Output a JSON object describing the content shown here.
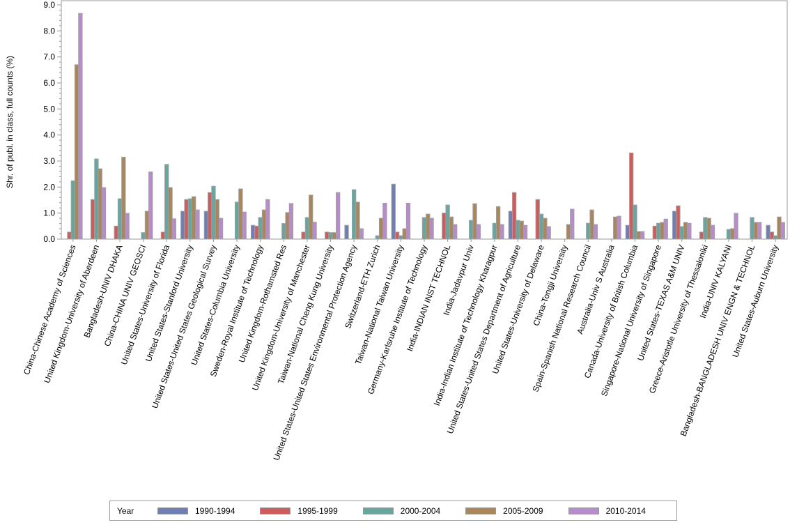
{
  "chart_data": {
    "type": "bar",
    "title": "",
    "xlabel": "",
    "ylabel": "Shr. of publ. in class, full counts (%)",
    "ylim": [
      0,
      9
    ],
    "yticks": [
      "0.0",
      "1.0",
      "2.0",
      "3.0",
      "4.0",
      "5.0",
      "6.0",
      "7.0",
      "8.0",
      "9.0"
    ],
    "legend_title": "Year",
    "legend_placement": "bottom",
    "categories": [
      "China-Chinese Academy of Sciences",
      "United Kingdom-University of Aberdeen",
      "Bangladesh-UNIV DHAKA",
      "China-CHINA UNIV GEOSCI",
      "United States-University of Florida",
      "United States-Stanford University",
      "United States-United States Geological Survey",
      "United States-Columbia University",
      "Sweden-Royal Institute of Technology",
      "United Kingdom-Rothamsted Res",
      "United Kingdom-University of Manchester",
      "Taiwan-National Cheng Kung University",
      "United States-United States Environmental Protection Agency",
      "Switzerland-ETH Zurich",
      "Taiwan-National Taiwan University",
      "Germany-Karlsruhe Institute of Technology",
      "India-INDIAN INST TECHNOL",
      "India-Jadavpur Univ",
      "India-Indian Institute of Technology Kharagpur",
      "United States-United States Department of Agriculture",
      "United States-University of Delaware",
      "China-Tongji University",
      "Spain-Spanish National Research Council",
      "Australia-Univ S Australia",
      "Canada-University of British Columbia",
      "Singapore-National University of Singapore",
      "United States-TEXAS A&M UNIV",
      "Greece-Aristotle University of Thessaloniki",
      "India-UNIV KALYANI",
      "Bangladesh-BANGLADESH UNIV ENGN & TECHNOL",
      "United States-Auburn University"
    ],
    "series": [
      {
        "name": "1990-1994",
        "color": "#6f7eb3",
        "values": [
          null,
          null,
          null,
          null,
          null,
          1.07,
          1.07,
          null,
          0.53,
          null,
          null,
          null,
          0.53,
          null,
          2.11,
          null,
          null,
          null,
          null,
          1.07,
          null,
          null,
          null,
          null,
          0.53,
          null,
          1.07,
          null,
          null,
          null,
          0.53
        ]
      },
      {
        "name": "1995-1999",
        "color": "#d05b5b",
        "values": [
          0.27,
          1.52,
          0.5,
          null,
          0.27,
          1.52,
          1.79,
          null,
          0.5,
          null,
          0.27,
          0.27,
          null,
          null,
          0.27,
          null,
          1.0,
          null,
          null,
          1.79,
          1.52,
          null,
          null,
          null,
          3.31,
          0.5,
          1.28,
          0.27,
          null,
          null,
          0.27
        ]
      },
      {
        "name": "2000-2004",
        "color": "#66a5a0",
        "values": [
          2.24,
          3.08,
          1.55,
          0.25,
          2.87,
          1.55,
          2.03,
          1.42,
          0.83,
          0.6,
          0.83,
          0.25,
          1.9,
          0.13,
          0.13,
          0.83,
          1.31,
          0.72,
          0.61,
          0.72,
          0.96,
          null,
          0.61,
          null,
          1.31,
          0.61,
          0.48,
          0.83,
          0.37,
          0.83,
          0.13
        ]
      },
      {
        "name": "2005-2009",
        "color": "#a9865b",
        "values": [
          6.7,
          2.7,
          3.15,
          1.07,
          1.98,
          1.63,
          1.52,
          1.93,
          1.12,
          1.02,
          1.69,
          0.25,
          1.42,
          0.8,
          0.4,
          0.96,
          0.85,
          1.36,
          1.25,
          0.69,
          0.8,
          0.56,
          1.12,
          0.85,
          0.29,
          0.64,
          0.64,
          0.8,
          0.4,
          0.64,
          0.85
        ]
      },
      {
        "name": "2010-2014",
        "color": "#b88ccc",
        "values": [
          8.67,
          1.98,
          0.99,
          2.58,
          0.78,
          1.12,
          0.8,
          1.04,
          1.52,
          1.37,
          0.65,
          1.79,
          0.4,
          1.38,
          1.38,
          0.8,
          0.56,
          0.56,
          0.56,
          0.53,
          0.48,
          1.15,
          0.56,
          0.88,
          0.29,
          0.77,
          0.61,
          0.53,
          0.99,
          0.64,
          0.64
        ]
      }
    ]
  }
}
